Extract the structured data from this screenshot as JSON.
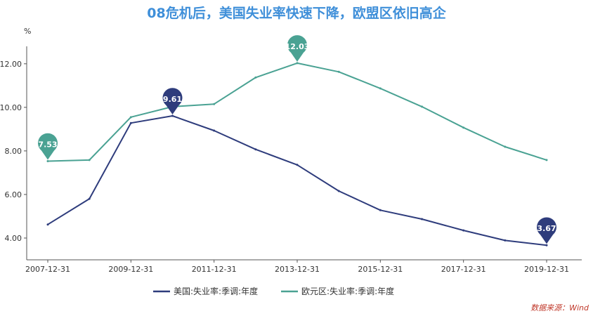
{
  "title": "08危机后，美国失业率快速下降，欧盟区依旧高企",
  "source": "数据来源：Wind",
  "colors": {
    "us": "#2e3c7c",
    "eu": "#4aa293",
    "title": "#3f8fd9",
    "source": "#c0392b"
  },
  "chart_data": {
    "type": "line",
    "title": "08危机后，美国失业率快速下降，欧盟区依旧高企",
    "ylabel": "%",
    "ylim": [
      3.0,
      12.8
    ],
    "yticks": [
      4.0,
      6.0,
      8.0,
      10.0,
      12.0
    ],
    "ytick_labels": [
      "4.00",
      "6.00",
      "8.00",
      "10.00",
      "12.00"
    ],
    "x": [
      "2007-12-31",
      "2008-12-31",
      "2009-12-31",
      "2010-12-31",
      "2011-12-31",
      "2012-12-31",
      "2013-12-31",
      "2014-12-31",
      "2015-12-31",
      "2016-12-31",
      "2017-12-31",
      "2018-12-31",
      "2019-12-31"
    ],
    "xtick_labels": [
      "2007-12-31",
      "2009-12-31",
      "2011-12-31",
      "2013-12-31",
      "2015-12-31",
      "2017-12-31",
      "2019-12-31"
    ],
    "grid": false,
    "legend": "bottom-center",
    "series": [
      {
        "name": "美国:失业率:季调:年度",
        "key": "us",
        "values": [
          4.62,
          5.8,
          9.28,
          9.61,
          8.93,
          8.07,
          7.36,
          6.16,
          5.28,
          4.87,
          4.35,
          3.89,
          3.67
        ],
        "markers": [
          {
            "index": 3,
            "label": "9.61"
          },
          {
            "index": 12,
            "label": "3.67"
          }
        ]
      },
      {
        "name": "欧元区:失业率:季调:年度",
        "key": "eu",
        "values": [
          7.53,
          7.58,
          9.55,
          10.03,
          10.15,
          11.37,
          12.03,
          11.63,
          10.87,
          10.03,
          9.07,
          8.19,
          7.58
        ],
        "markers": [
          {
            "index": 0,
            "label": "7.53"
          },
          {
            "index": 6,
            "label": "12.03"
          }
        ]
      }
    ]
  }
}
